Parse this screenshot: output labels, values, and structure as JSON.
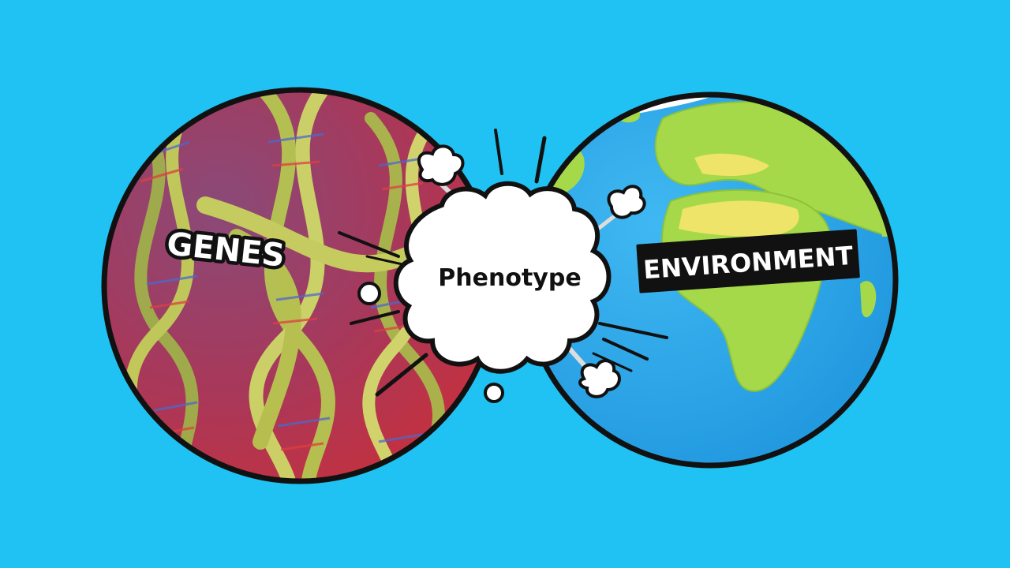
{
  "diagram": {
    "left_label": "GENES",
    "right_label": "ENVIRONMENT",
    "center_label": "Phenotype"
  },
  "colors": {
    "background": "#1fc2f2",
    "genes_fill": "#a03a5a",
    "dna_strand": "#b9c94a",
    "ocean": "#2aa7e8",
    "land": "#a6d94a",
    "desert": "#efe46a",
    "ice": "#ffffff",
    "outline": "#111111"
  },
  "icons": [
    "dna-helix-icon",
    "earth-globe-icon",
    "explosion-cloud-icon"
  ]
}
